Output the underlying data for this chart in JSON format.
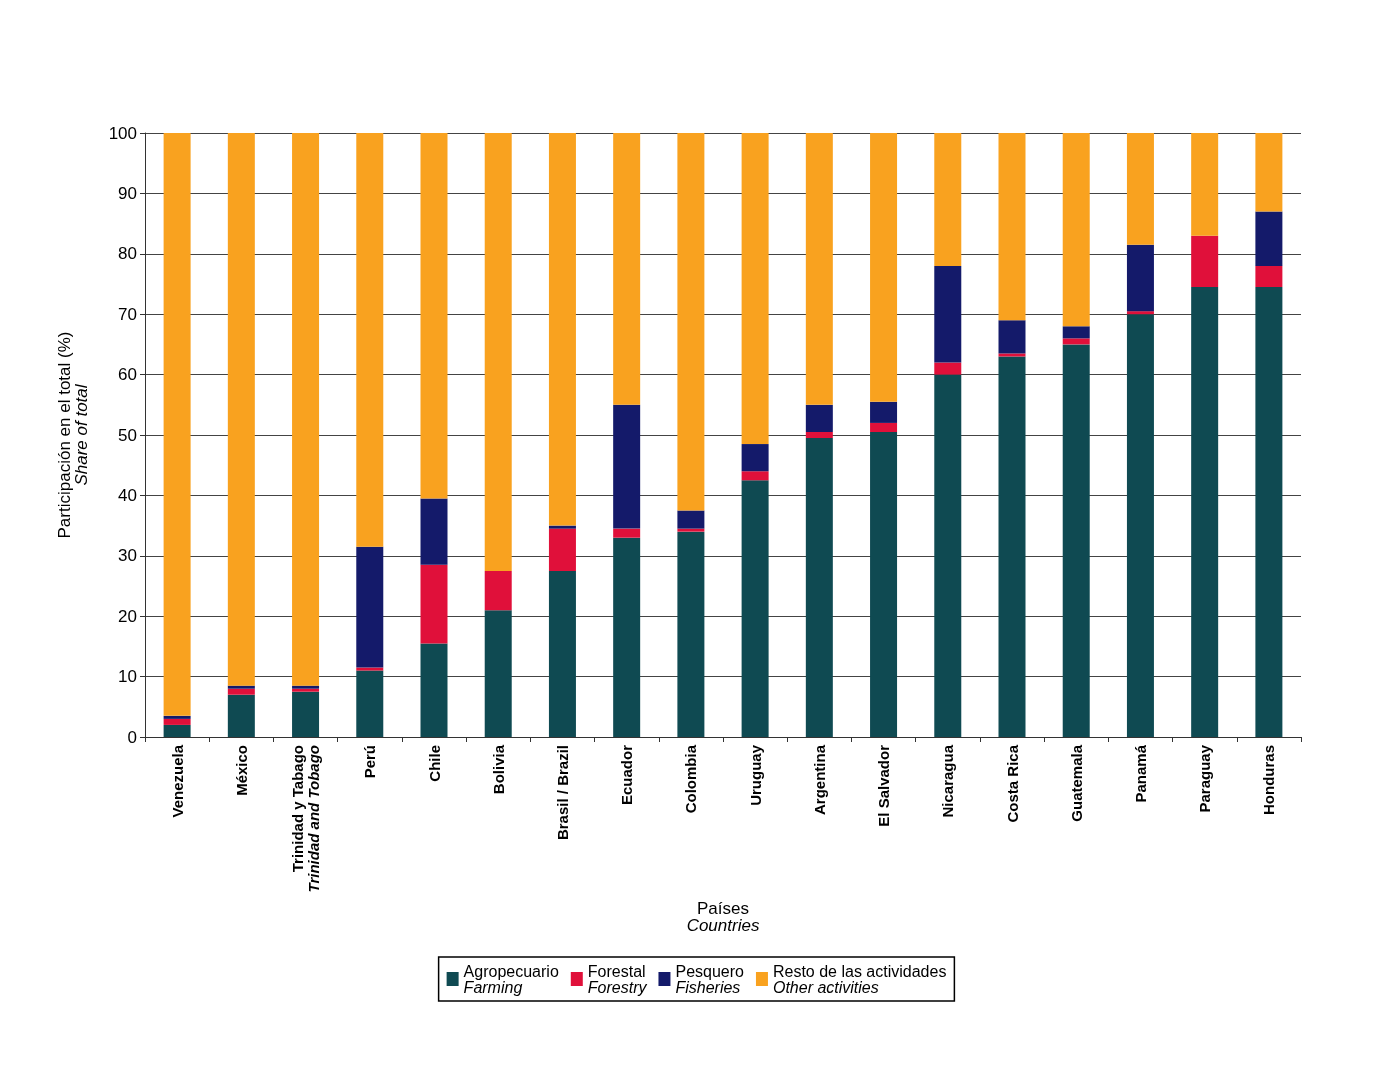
{
  "chart_data": {
    "type": "bar",
    "stacked": true,
    "xlabel": "Países\nCountries",
    "ylabel": "Participación en el total (%)\nShare of total",
    "categories": [
      "Venezuela",
      "México",
      "Trinidad y Tabago\nTrinidad and Tobago",
      "Perú",
      "Chile",
      "Bolivia",
      "Brasil / Brazil",
      "Ecuador",
      "Colombia",
      "Uruguay",
      "Argentina",
      "El Salvador",
      "Nicaragua",
      "Costa Rica",
      "Guatemala",
      "Panamá",
      "Paraguay",
      "Honduras"
    ],
    "series": [
      {
        "name": "Agropecuario\nFarming",
        "color": "#0f4a52",
        "values": [
          2,
          7,
          7.5,
          11,
          15.5,
          21,
          27.5,
          33,
          34,
          42.5,
          49.5,
          50.5,
          60,
          63,
          65,
          70,
          74.5,
          74.5
        ]
      },
      {
        "name": "Forestal\nForestry",
        "color": "#e0103a",
        "values": [
          1,
          1,
          0.5,
          0.5,
          13,
          6.5,
          7,
          1.5,
          0.5,
          1.5,
          1,
          1.5,
          2,
          0.5,
          1,
          0.5,
          8.5,
          3.5
        ]
      },
      {
        "name": "Pesquero\nFisheries",
        "color": "#141a6a",
        "values": [
          0.5,
          0.5,
          0.5,
          20,
          11,
          0,
          0.5,
          20.5,
          3,
          4.5,
          4.5,
          3.5,
          16,
          5.5,
          2,
          11,
          0,
          9
        ]
      },
      {
        "name": "Resto de las actividades\nOther activities",
        "color": "#f9a21f",
        "values": [
          96.5,
          91.5,
          91.5,
          68.5,
          60.5,
          72.5,
          65,
          45,
          62.5,
          51.5,
          45,
          44.5,
          22,
          31,
          32,
          18.5,
          17,
          13
        ]
      }
    ],
    "ylim": [
      0,
      100
    ],
    "yticks": [
      0,
      10,
      20,
      30,
      40,
      50,
      60,
      70,
      80,
      90,
      100
    ],
    "grid": "y",
    "legend": "bottom"
  }
}
